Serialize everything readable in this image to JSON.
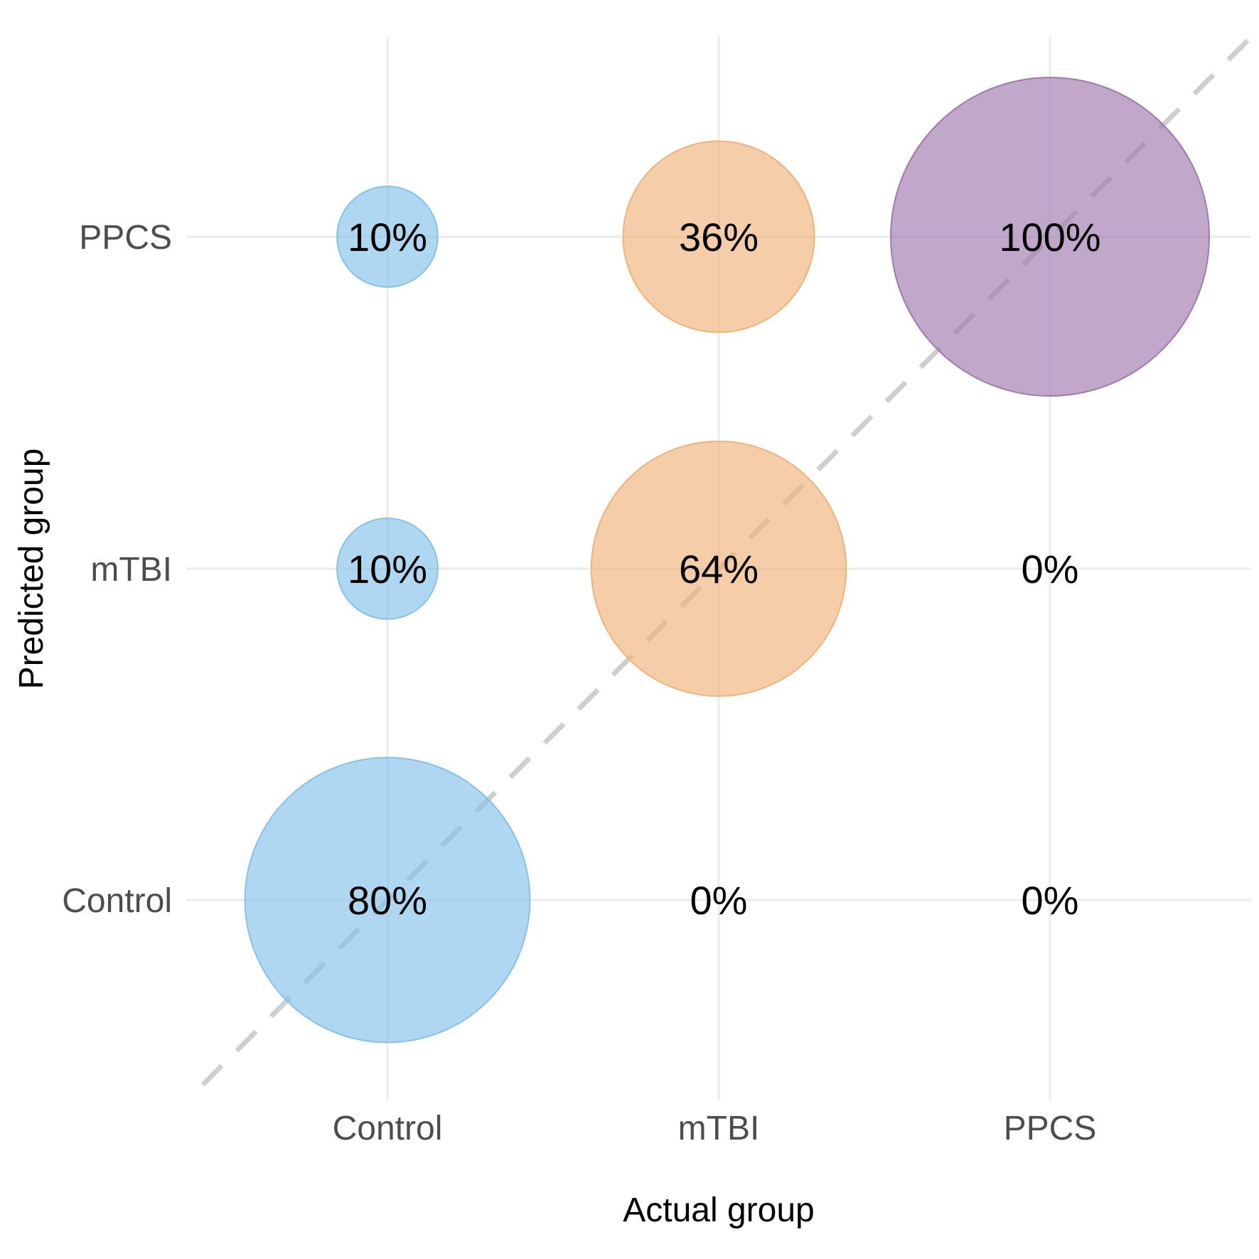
{
  "chart_data": {
    "type": "bubble",
    "xlabel": "Actual group",
    "ylabel": "Predicted group",
    "x_categories": [
      "Control",
      "mTBI",
      "PPCS"
    ],
    "y_categories": [
      "Control",
      "mTBI",
      "PPCS"
    ],
    "cells": [
      {
        "actual": "Control",
        "predicted": "Control",
        "value": 80,
        "label": "80%"
      },
      {
        "actual": "Control",
        "predicted": "mTBI",
        "value": 10,
        "label": "10%"
      },
      {
        "actual": "Control",
        "predicted": "PPCS",
        "value": 10,
        "label": "10%"
      },
      {
        "actual": "mTBI",
        "predicted": "Control",
        "value": 0,
        "label": "0%"
      },
      {
        "actual": "mTBI",
        "predicted": "mTBI",
        "value": 64,
        "label": "64%"
      },
      {
        "actual": "mTBI",
        "predicted": "PPCS",
        "value": 36,
        "label": "36%"
      },
      {
        "actual": "PPCS",
        "predicted": "Control",
        "value": 0,
        "label": "0%"
      },
      {
        "actual": "PPCS",
        "predicted": "mTBI",
        "value": 0,
        "label": "0%"
      },
      {
        "actual": "PPCS",
        "predicted": "PPCS",
        "value": 100,
        "label": "100%"
      }
    ],
    "colors": {
      "Control": "#85c1e9",
      "mTBI": "#f0b27a",
      "PPCS": "#a07aaf"
    },
    "fill_opacity": 0.65,
    "reference_line": "dashed diagonal",
    "grid": true,
    "legend": "none"
  }
}
